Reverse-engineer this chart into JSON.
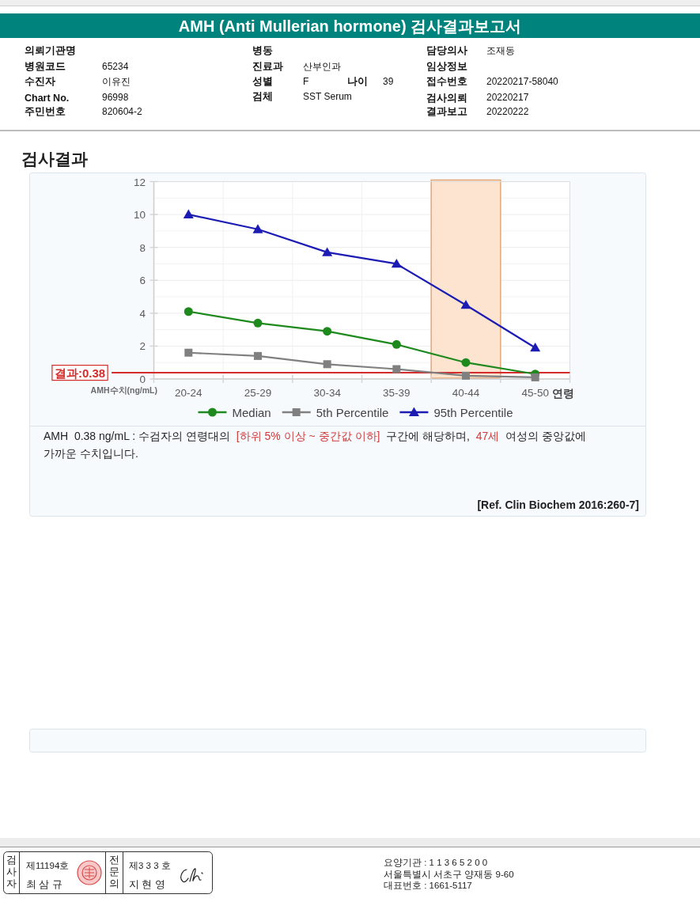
{
  "chart_data": {
    "type": "line",
    "title": "AMH (Anti Mullerian hormone) 검사결과보고서",
    "subtitle": "검사결과",
    "xlabel": "연령",
    "ylabel": "AMH수치(ng/mL)",
    "categories": [
      "20-24",
      "25-29",
      "30-34",
      "35-39",
      "40-44",
      "45-50"
    ],
    "series": [
      {
        "name": "Median",
        "color": "#1e8a1e",
        "marker": "circle",
        "values": [
          4.1,
          3.4,
          2.9,
          2.1,
          1.0,
          0.3
        ]
      },
      {
        "name": "5th Percentile",
        "color": "#808080",
        "marker": "square",
        "values": [
          1.6,
          1.4,
          0.9,
          0.6,
          0.2,
          0.1
        ]
      },
      {
        "name": "95th Percentile",
        "color": "#1c1cb4",
        "marker": "triangle",
        "values": [
          10.0,
          9.1,
          7.7,
          7.0,
          4.5,
          1.9
        ]
      }
    ],
    "ylim": [
      0,
      12
    ],
    "yticks": [
      0,
      2,
      4,
      6,
      8,
      10,
      12
    ],
    "grid": true,
    "legend": "bottom",
    "ref_lines": [
      {
        "axis": "y",
        "value": 0.38,
        "label": "결과:0.38",
        "color": "#d42b2b"
      }
    ],
    "bands": [
      {
        "axis": "x",
        "from": "40-44",
        "to": "40-44",
        "color": "#fde4d0"
      }
    ],
    "annotations": [
      "의뢰기관명",
      "병동",
      "담당의사",
      "조재동",
      "병원코드",
      "65234",
      "진료과",
      "산부인과",
      "임상정보",
      "수진자",
      "이유진",
      "성별",
      "F",
      "나이",
      "39",
      "접수번호",
      "20220217-58040",
      "Chart No.",
      "96998",
      "검체",
      "SST Serum",
      "검사의뢰",
      "20220217",
      "주민번호",
      "820604-2",
      "결과보고",
      "20220222",
      "AMH  0.38 ng/mL : 수검자의 연령대의",
      "[하위 5% 이상 ~ 중간값 이하]",
      "구간에 해당하며,",
      "47세",
      "여성의 중앙값에",
      "가까운 수치입니다.",
      "[Ref. Clin Biochem 2016:260-7]",
      "검사자",
      "제11194호",
      "최 삼 규",
      "전문의",
      "제3 3 3 호",
      "지 현 영",
      "요양기관 : 1 1 3 6 5 2 0 0",
      "서울특별시 서초구 양재동 9-60",
      "대표번호 : 1661-5117"
    ]
  }
}
